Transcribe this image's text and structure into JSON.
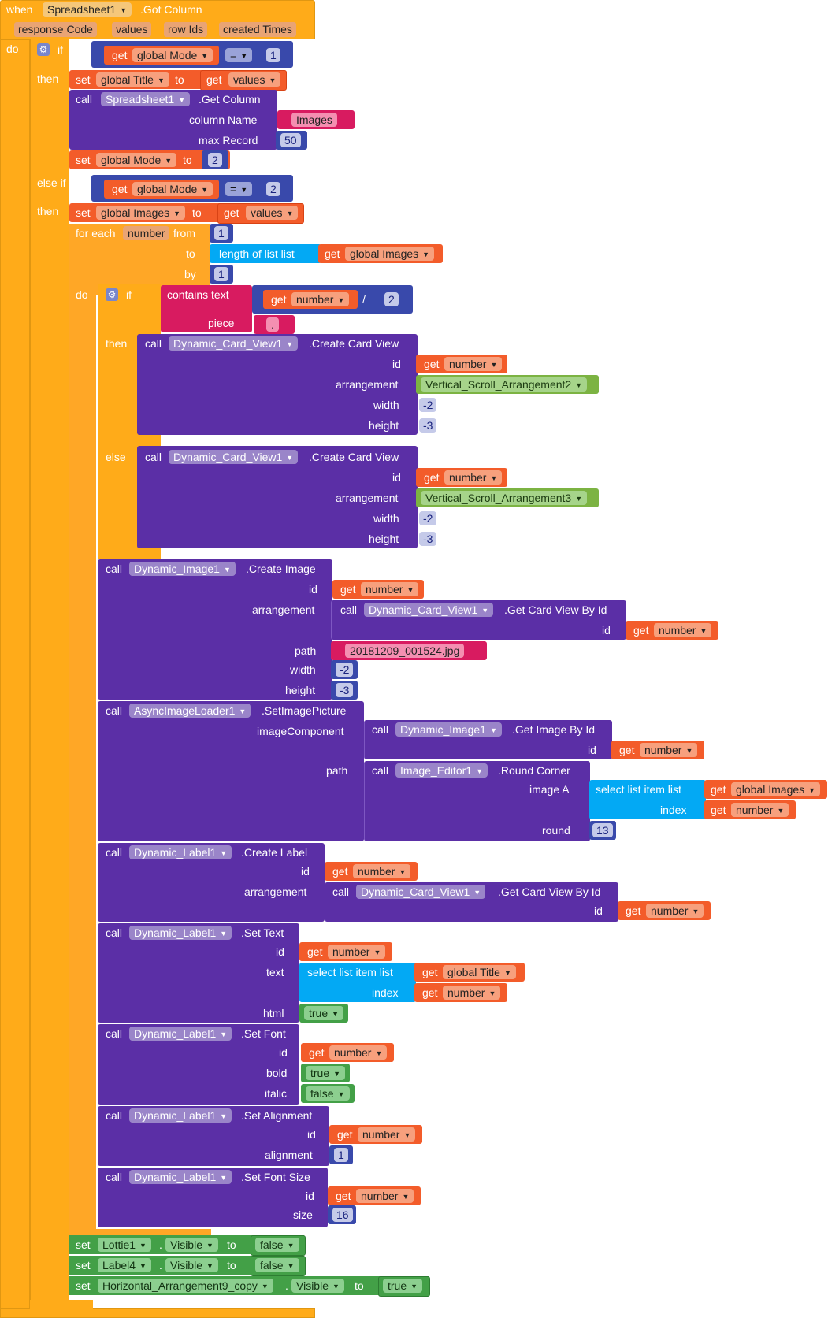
{
  "event": {
    "when": "when",
    "component": "Spreadsheet1",
    ".event": ".Got Column",
    "params": [
      "response Code",
      "values",
      "row Ids",
      "created Times"
    ]
  },
  "k": {
    "do": "do",
    "if": "if",
    "then": "then",
    "else_if": "else if",
    "else": "else",
    "set": "set",
    "to": "to",
    "get": "get",
    "call": "call",
    "for_each": "for each",
    "from": "from",
    "by": "by",
    "length_of_list": "length of list  list",
    "contains_text": "contains  text",
    "piece": "piece",
    "select_list_item": "select list item  list",
    "index": "index",
    "id": "id",
    "arrangement": "arrangement",
    "width": "width",
    "height": "height",
    "column_name": "column Name",
    "max_record": "max Record",
    "path": "path",
    "image_component": "imageComponent",
    "image_a": "image A",
    "round": "round",
    "text": "text",
    "html": "html",
    "bold": "bold",
    "italic": "italic",
    "alignment": "alignment",
    "size": "size",
    "dot": ".",
    "eq": "=",
    "div": "/"
  },
  "vars": {
    "mode": "global Mode",
    "title": "global Title",
    "images": "global Images",
    "values": "values",
    "number": "number"
  },
  "methods": {
    "get_column": ".Get Column",
    "create_card_view": ".Create Card View",
    "create_image": ".Create Image",
    "get_card_view_by_id": ".Get Card View By Id",
    "set_image_picture": ".SetImagePicture",
    "get_image_by_id": ".Get Image By Id",
    "round_corner": ".Round Corner",
    "create_label": ".Create Label",
    "set_text": ".Set Text",
    "set_font": ".Set Font",
    "set_alignment": ".Set Alignment",
    "set_font_size": ".Set Font Size"
  },
  "comps": {
    "spreadsheet": "Spreadsheet1",
    "card": "Dynamic_Card_View1",
    "image": "Dynamic_Image1",
    "loader": "AsyncImageLoader1",
    "editor": "Image_Editor1",
    "label": "Dynamic_Label1",
    "lottie": "Lottie1",
    "label4": "Label4",
    "harr": "Horizontal_Arrangement9_copy",
    "vsa2": "Vertical_Scroll_Arrangement2",
    "vsa3": "Vertical_Scroll_Arrangement3"
  },
  "props": {
    "visible": "Visible"
  },
  "values": {
    "one": "1",
    "two": "2",
    "fifty": "50",
    "neg2": "-2",
    "neg3": "-3",
    "thirteen": "13",
    "sixteen": "16",
    "images_str": "Images",
    "dot_str": ".",
    "jpg": "20181209_001524.jpg",
    "true": "true",
    "false": "false"
  },
  "colors": {
    "event": "#ffab19",
    "procedure": "#5b2fa6",
    "variable": "#f35c2a",
    "text": "#d81b60",
    "math": "#3949ab",
    "list": "#03a9f4",
    "logic": "#43a047",
    "component": "#7cb342"
  }
}
